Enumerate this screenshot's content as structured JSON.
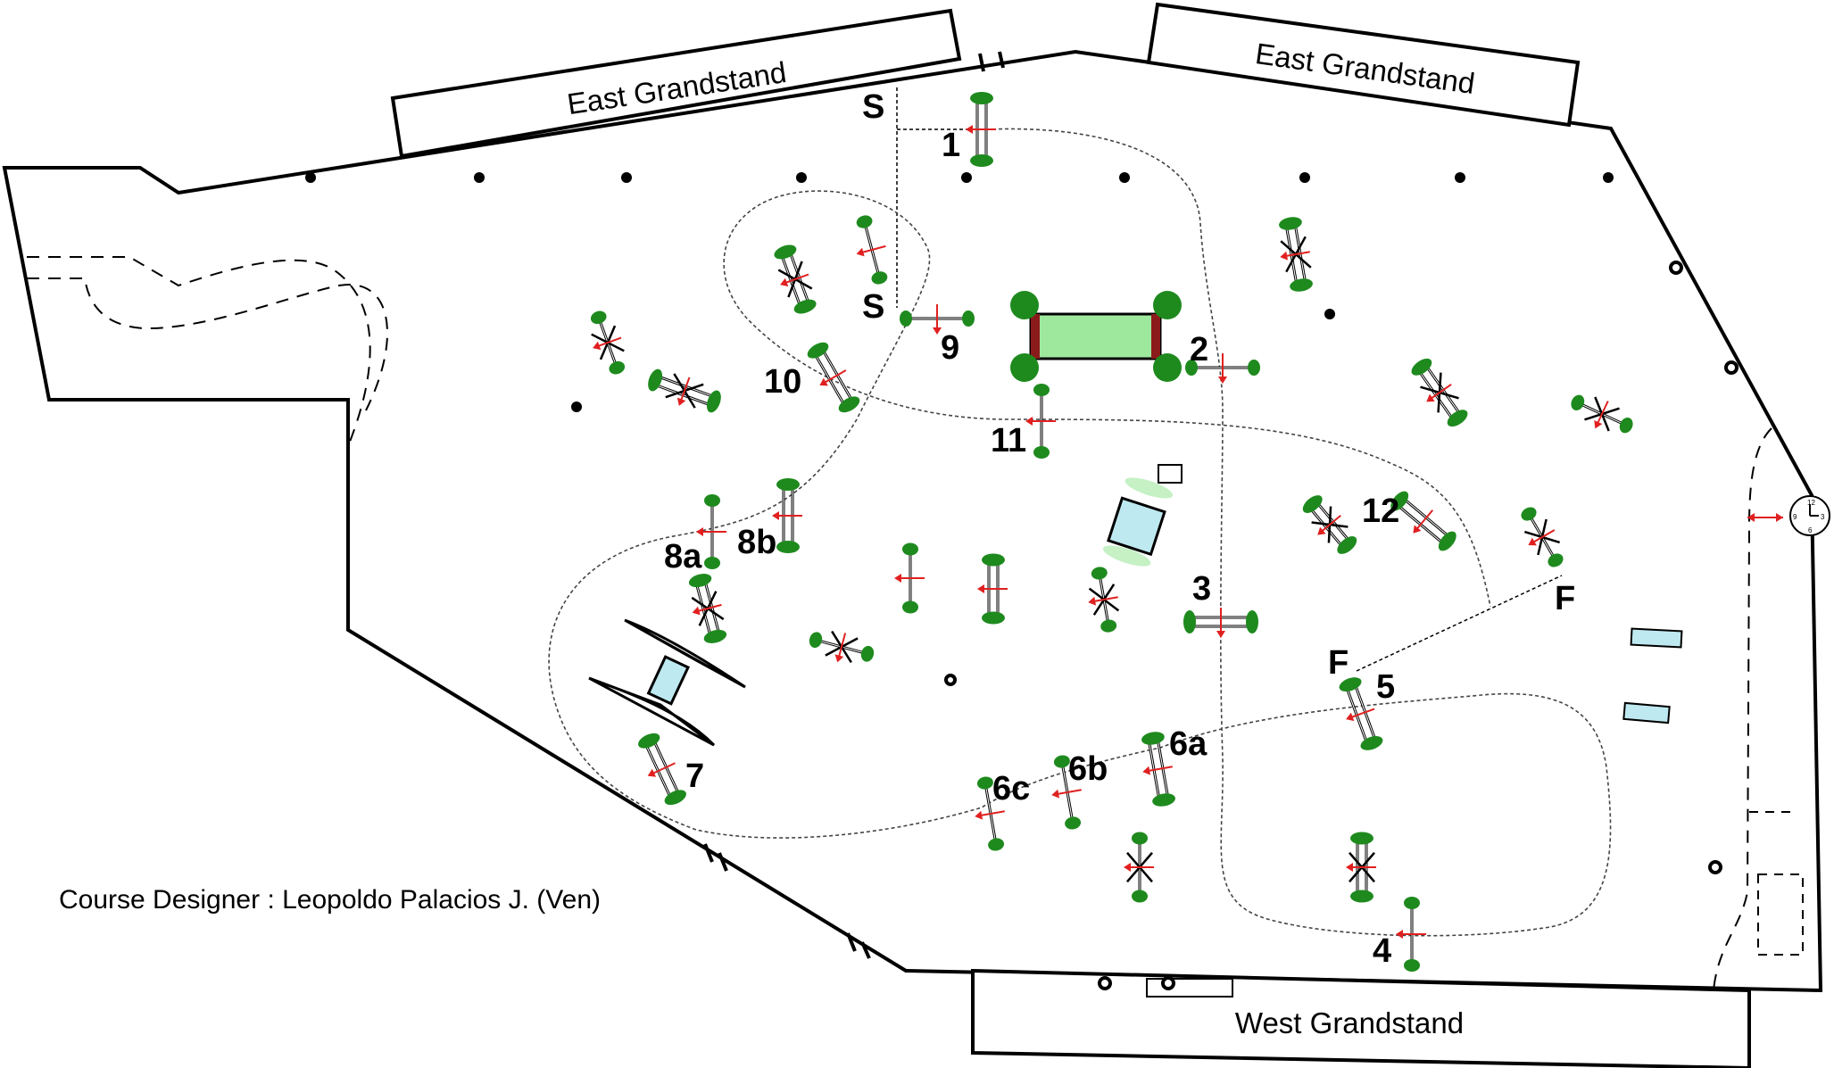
{
  "grandstands": [
    {
      "key": "east_left",
      "label": "East Grandstand"
    },
    {
      "key": "east_right",
      "label": "East Grandstand"
    },
    {
      "key": "west",
      "label": "West Grandstand"
    }
  ],
  "course_markers": {
    "start": "S",
    "start_short": "S",
    "finish": "F",
    "finish_short": "F"
  },
  "jumps": [
    {
      "key": "j1",
      "label": "1"
    },
    {
      "key": "j2",
      "label": "2"
    },
    {
      "key": "j3",
      "label": "3"
    },
    {
      "key": "j4",
      "label": "4"
    },
    {
      "key": "j5",
      "label": "5"
    },
    {
      "key": "j6a",
      "label": "6a"
    },
    {
      "key": "j6b",
      "label": "6b"
    },
    {
      "key": "j6c",
      "label": "6c"
    },
    {
      "key": "j7",
      "label": "7"
    },
    {
      "key": "j8a",
      "label": "8a"
    },
    {
      "key": "j8b",
      "label": "8b"
    },
    {
      "key": "j9",
      "label": "9"
    },
    {
      "key": "j10",
      "label": "10"
    },
    {
      "key": "j11",
      "label": "11"
    },
    {
      "key": "j12",
      "label": "12"
    }
  ],
  "designer": "Course Designer : Leopoldo Palacios J. (Ven)",
  "clock_numbers": [
    "12",
    "3",
    "6",
    "9"
  ],
  "colors": {
    "arrow": "#e02020",
    "tree": "#1e8a1e",
    "water": "#bfe9f0",
    "hedge": "#9ee89e",
    "brick": "#8b1a1a"
  }
}
